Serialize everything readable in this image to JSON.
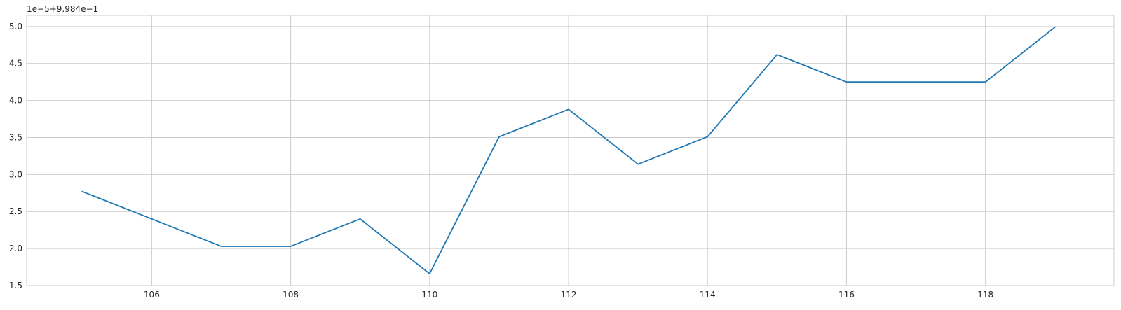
{
  "chart_data": {
    "type": "line",
    "title": "",
    "xlabel": "",
    "ylabel": "",
    "axis_offset_text": "1e−5+9.984e−1",
    "x": [
      105,
      106,
      107,
      108,
      109,
      110,
      111,
      112,
      113,
      114,
      115,
      116,
      117,
      118,
      119
    ],
    "series": [
      {
        "color": "#1f77b4",
        "values": [
          2.77,
          2.4,
          2.03,
          2.03,
          2.4,
          1.66,
          3.51,
          3.88,
          3.14,
          3.51,
          4.62,
          4.25,
          4.25,
          4.25,
          4.99
        ]
      }
    ],
    "xlim": [
      104.2,
      119.85
    ],
    "ylim": [
      1.5,
      5.15
    ],
    "x_ticks": [
      "106",
      "108",
      "110",
      "112",
      "114",
      "116",
      "118"
    ],
    "y_ticks": [
      "1.5",
      "2.0",
      "2.5",
      "3.0",
      "3.5",
      "4.0",
      "4.5",
      "5.0"
    ],
    "grid": true,
    "legend": "none"
  }
}
